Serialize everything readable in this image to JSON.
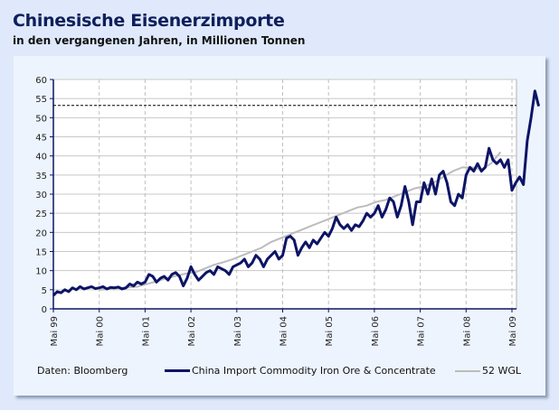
{
  "chart_data": {
    "type": "line",
    "title": "Chinesische Eisenerzimporte",
    "subtitle": "in den vergangenen Jahren, in Millionen Tonnen",
    "source": "Daten: Bloomberg",
    "ylim": [
      0,
      60
    ],
    "yticks": [
      0,
      5,
      10,
      15,
      20,
      25,
      30,
      35,
      40,
      45,
      50,
      55,
      60
    ],
    "xticks": [
      "Mai 99",
      "Mai 00",
      "Mai 01",
      "Mai 02",
      "Mai 03",
      "Mai 04",
      "Mai 05",
      "Mai 06",
      "Mai 07",
      "Mai 08",
      "Mai 09"
    ],
    "grid": true,
    "legend_position": "bottom",
    "reference_line": 53.2,
    "series": [
      {
        "name": "China Import Commodity Iron Ore & Concentrate",
        "color": "#0c1466",
        "start": "1999-05",
        "values": [
          3.5,
          4.5,
          4.2,
          5,
          4.5,
          5.5,
          5,
          5.8,
          5.2,
          5.5,
          5.8,
          5.3,
          5.5,
          5.8,
          5.2,
          5.6,
          5.5,
          5.7,
          5.2,
          5.5,
          6.5,
          6,
          7,
          6.5,
          7,
          9,
          8.5,
          7,
          8,
          8.5,
          7.5,
          9,
          9.5,
          8.5,
          6,
          8,
          11,
          9,
          7.5,
          8.5,
          9.5,
          10,
          9,
          11,
          10.5,
          10,
          9,
          11,
          11.5,
          12,
          13,
          11,
          12,
          14,
          13,
          11,
          13,
          14,
          15,
          13,
          14,
          18.5,
          19,
          18,
          14,
          16,
          17.5,
          16,
          18,
          17,
          18.5,
          20,
          19,
          21,
          24,
          22,
          21,
          22,
          20.5,
          22,
          21.5,
          23,
          25,
          24,
          25,
          27,
          24,
          26,
          29,
          28,
          24,
          27,
          32,
          28,
          22,
          28,
          28,
          33,
          30,
          34,
          30,
          35,
          36,
          33,
          28,
          27,
          30,
          29,
          35,
          37,
          36,
          38,
          36,
          37,
          42,
          39,
          38,
          39,
          37,
          39,
          31,
          33,
          34.5,
          32.5,
          44,
          50,
          57,
          53
        ]
      },
      {
        "name": "52 WGL",
        "color": "#bcbcbc",
        "start": "2000-05",
        "values": [
          5,
          5.2,
          5.4,
          5.6,
          5.8,
          6.5,
          7.2,
          8,
          8.6,
          9.2,
          9.5,
          10.5,
          11.5,
          12.2,
          13,
          14,
          15,
          16,
          17.5,
          18.5,
          19.5,
          20.5,
          21.5,
          22.5,
          23.5,
          24.5,
          25.5,
          26.5,
          27,
          28,
          28.5,
          29.5,
          30.5,
          31.5,
          32,
          33,
          34.5,
          36,
          37,
          37,
          36.5,
          38,
          41
        ]
      }
    ]
  }
}
